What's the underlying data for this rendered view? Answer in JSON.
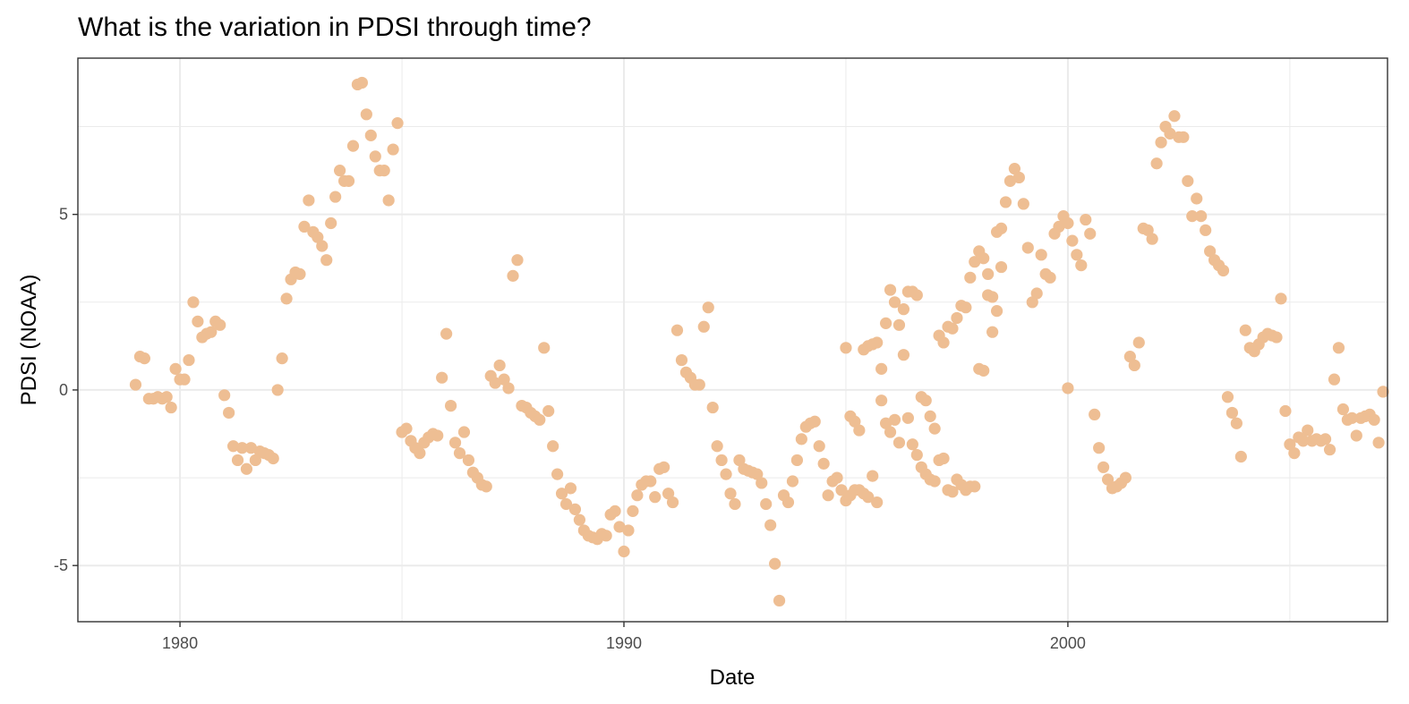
{
  "chart_data": {
    "type": "scatter",
    "title": "What is the variation in PDSI through time?",
    "xlabel": "Date",
    "ylabel": "PDSI (NOAA)",
    "x_tick_labels": [
      "1980",
      "1990",
      "2000"
    ],
    "y_tick_labels": [
      "-5",
      "0",
      "5"
    ],
    "xlim": [
      1977.7,
      2007.2
    ],
    "ylim": [
      -6.6,
      9.45
    ],
    "grid": true,
    "point_color": "#EEBE93",
    "points": [
      [
        1979.0,
        0.15
      ],
      [
        1979.1,
        0.95
      ],
      [
        1979.2,
        0.9
      ],
      [
        1979.3,
        -0.25
      ],
      [
        1979.4,
        -0.25
      ],
      [
        1979.5,
        -0.2
      ],
      [
        1979.6,
        -0.25
      ],
      [
        1979.7,
        -0.2
      ],
      [
        1979.8,
        -0.5
      ],
      [
        1979.9,
        0.6
      ],
      [
        2000.0,
        0.05
      ],
      [
        1980.0,
        0.3
      ],
      [
        1980.1,
        0.3
      ],
      [
        1980.2,
        0.85
      ],
      [
        1980.3,
        2.5
      ],
      [
        1980.4,
        1.95
      ],
      [
        1980.5,
        1.5
      ],
      [
        1980.6,
        1.6
      ],
      [
        1980.7,
        1.65
      ],
      [
        1980.8,
        1.95
      ],
      [
        1980.9,
        1.85
      ],
      [
        1981.0,
        -0.15
      ],
      [
        1981.1,
        -0.65
      ],
      [
        1981.2,
        -1.6
      ],
      [
        1981.3,
        -2.0
      ],
      [
        1981.4,
        -1.65
      ],
      [
        1981.5,
        -2.25
      ],
      [
        1981.6,
        -1.65
      ],
      [
        1981.7,
        -2.0
      ],
      [
        1981.8,
        -1.75
      ],
      [
        1981.9,
        -1.8
      ],
      [
        1982.0,
        -1.85
      ],
      [
        1982.1,
        -1.95
      ],
      [
        1982.2,
        0.0
      ],
      [
        1982.3,
        0.9
      ],
      [
        1982.4,
        2.6
      ],
      [
        1982.5,
        3.15
      ],
      [
        1982.6,
        3.35
      ],
      [
        1982.7,
        3.3
      ],
      [
        1982.8,
        4.65
      ],
      [
        1982.9,
        5.4
      ],
      [
        1983.0,
        4.5
      ],
      [
        1983.1,
        4.35
      ],
      [
        1983.2,
        4.1
      ],
      [
        1983.3,
        3.7
      ],
      [
        1983.4,
        4.75
      ],
      [
        1983.5,
        5.5
      ],
      [
        1983.6,
        6.25
      ],
      [
        1983.7,
        5.95
      ],
      [
        1983.8,
        5.95
      ],
      [
        1983.9,
        6.95
      ],
      [
        1984.0,
        8.7
      ],
      [
        1984.1,
        8.75
      ],
      [
        1984.2,
        7.85
      ],
      [
        1984.3,
        7.25
      ],
      [
        1984.4,
        6.65
      ],
      [
        1984.5,
        6.25
      ],
      [
        1984.6,
        6.25
      ],
      [
        1984.7,
        5.4
      ],
      [
        1984.8,
        6.85
      ],
      [
        1984.9,
        7.6
      ],
      [
        1985.0,
        -1.2
      ],
      [
        1985.1,
        -1.1
      ],
      [
        1985.2,
        -1.45
      ],
      [
        1985.3,
        -1.65
      ],
      [
        1985.4,
        -1.8
      ],
      [
        1985.5,
        -1.5
      ],
      [
        1985.6,
        -1.35
      ],
      [
        1985.7,
        -1.25
      ],
      [
        1985.8,
        -1.3
      ],
      [
        1985.9,
        0.35
      ],
      [
        1986.0,
        1.6
      ],
      [
        1986.1,
        -0.45
      ],
      [
        1986.2,
        -1.5
      ],
      [
        1986.3,
        -1.8
      ],
      [
        1986.4,
        -1.2
      ],
      [
        1986.5,
        -2.0
      ],
      [
        1986.6,
        -2.35
      ],
      [
        1986.7,
        -2.5
      ],
      [
        1986.8,
        -2.7
      ],
      [
        1986.9,
        -2.75
      ],
      [
        1987.0,
        0.4
      ],
      [
        1987.1,
        0.2
      ],
      [
        1987.2,
        0.7
      ],
      [
        1987.3,
        0.3
      ],
      [
        1987.4,
        0.05
      ],
      [
        1987.5,
        3.25
      ],
      [
        1987.6,
        3.7
      ],
      [
        1987.7,
        -0.45
      ],
      [
        1987.8,
        -0.5
      ],
      [
        1987.9,
        -0.65
      ],
      [
        1988.0,
        -0.75
      ],
      [
        1988.1,
        -0.85
      ],
      [
        1988.2,
        1.2
      ],
      [
        1988.3,
        -0.6
      ],
      [
        1988.4,
        -1.6
      ],
      [
        1988.5,
        -2.4
      ],
      [
        1988.6,
        -2.95
      ],
      [
        1988.7,
        -3.25
      ],
      [
        1988.8,
        -2.8
      ],
      [
        1988.9,
        -3.4
      ],
      [
        1989.0,
        -3.7
      ],
      [
        1989.1,
        -4.0
      ],
      [
        1989.2,
        -4.15
      ],
      [
        1989.3,
        -4.2
      ],
      [
        1989.4,
        -4.25
      ],
      [
        1989.5,
        -4.1
      ],
      [
        1989.6,
        -4.15
      ],
      [
        1989.7,
        -3.55
      ],
      [
        1989.8,
        -3.45
      ],
      [
        1989.9,
        -3.9
      ],
      [
        1990.0,
        -4.6
      ],
      [
        1990.1,
        -4.0
      ],
      [
        1990.2,
        -3.45
      ],
      [
        1990.3,
        -3.0
      ],
      [
        1990.4,
        -2.7
      ],
      [
        1990.5,
        -2.6
      ],
      [
        1990.6,
        -2.6
      ],
      [
        1990.7,
        -3.05
      ],
      [
        1990.8,
        -2.25
      ],
      [
        1990.9,
        -2.2
      ],
      [
        1991.0,
        -2.95
      ],
      [
        1991.1,
        -3.2
      ],
      [
        1991.2,
        1.7
      ],
      [
        1991.3,
        0.85
      ],
      [
        1991.4,
        0.5
      ],
      [
        1991.5,
        0.35
      ],
      [
        1991.6,
        0.15
      ],
      [
        1991.7,
        0.15
      ],
      [
        1991.8,
        1.8
      ],
      [
        1991.9,
        2.35
      ],
      [
        1992.0,
        -0.5
      ],
      [
        1992.1,
        -1.6
      ],
      [
        1992.2,
        -2.0
      ],
      [
        1992.3,
        -2.4
      ],
      [
        1992.4,
        -2.95
      ],
      [
        1992.5,
        -3.25
      ],
      [
        1992.6,
        -2.0
      ],
      [
        1992.7,
        -2.25
      ],
      [
        1992.8,
        -2.3
      ],
      [
        1992.9,
        -2.35
      ],
      [
        1993.0,
        -2.4
      ],
      [
        1993.1,
        -2.65
      ],
      [
        1993.2,
        -3.25
      ],
      [
        1993.3,
        -3.85
      ],
      [
        1993.4,
        -4.95
      ],
      [
        1993.5,
        -6.0
      ],
      [
        1993.6,
        -3.0
      ],
      [
        1993.7,
        -3.2
      ],
      [
        1993.8,
        -2.6
      ],
      [
        1993.9,
        -2.0
      ],
      [
        1994.0,
        -1.4
      ],
      [
        1994.1,
        -1.05
      ],
      [
        1994.2,
        -0.95
      ],
      [
        1994.3,
        -0.9
      ],
      [
        1994.4,
        -1.6
      ],
      [
        1994.5,
        -2.1
      ],
      [
        1994.6,
        -3.0
      ],
      [
        1994.7,
        -2.6
      ],
      [
        1994.8,
        -2.5
      ],
      [
        1994.9,
        -2.85
      ],
      [
        1995.0,
        -3.15
      ],
      [
        1995.1,
        -3.0
      ],
      [
        1995.2,
        -2.85
      ],
      [
        1995.3,
        -2.85
      ],
      [
        1995.4,
        -2.95
      ],
      [
        1995.5,
        -3.05
      ],
      [
        1995.6,
        -2.45
      ],
      [
        1995.7,
        -3.2
      ],
      [
        1995.8,
        0.6
      ],
      [
        1995.9,
        1.9
      ],
      [
        1996.0,
        2.85
      ],
      [
        1996.1,
        2.5
      ],
      [
        1996.2,
        1.85
      ],
      [
        1996.3,
        2.3
      ],
      [
        1996.4,
        2.8
      ],
      [
        1996.5,
        2.8
      ],
      [
        1996.6,
        2.7
      ],
      [
        1996.7,
        -0.2
      ],
      [
        1996.8,
        -0.3
      ],
      [
        1996.9,
        -0.75
      ],
      [
        1997.0,
        -1.1
      ],
      [
        1997.1,
        -2.0
      ],
      [
        1997.2,
        -1.95
      ],
      [
        1997.3,
        -2.85
      ],
      [
        1997.4,
        -2.9
      ],
      [
        1997.5,
        -2.55
      ],
      [
        1997.6,
        -2.7
      ],
      [
        1997.7,
        -2.85
      ],
      [
        1997.8,
        -2.75
      ],
      [
        1997.9,
        -2.75
      ],
      [
        1998.0,
        0.6
      ],
      [
        1998.1,
        0.55
      ],
      [
        1998.2,
        2.7
      ],
      [
        1998.3,
        1.65
      ],
      [
        1998.4,
        4.5
      ],
      [
        1998.5,
        4.6
      ],
      [
        1998.6,
        5.35
      ],
      [
        1998.7,
        5.95
      ],
      [
        1998.8,
        6.3
      ],
      [
        1998.9,
        6.05
      ],
      [
        1999.0,
        5.3
      ],
      [
        1999.1,
        4.05
      ],
      [
        1999.2,
        2.5
      ],
      [
        1999.3,
        2.75
      ],
      [
        1999.4,
        3.85
      ],
      [
        1999.5,
        3.3
      ],
      [
        1999.6,
        3.2
      ],
      [
        1999.7,
        4.45
      ],
      [
        1999.8,
        4.65
      ],
      [
        1999.9,
        4.95
      ],
      [
        2000.0,
        4.75
      ],
      [
        2000.1,
        4.25
      ],
      [
        2000.2,
        3.85
      ],
      [
        2000.3,
        3.55
      ],
      [
        2000.4,
        4.85
      ],
      [
        2000.5,
        4.45
      ],
      [
        2000.6,
        -0.7
      ],
      [
        2000.7,
        -1.65
      ],
      [
        2000.8,
        -2.2
      ],
      [
        2000.9,
        -2.55
      ],
      [
        2001.0,
        -2.8
      ],
      [
        2001.1,
        -2.75
      ],
      [
        2001.2,
        -2.65
      ],
      [
        2001.3,
        -2.5
      ],
      [
        2001.4,
        0.95
      ],
      [
        2001.5,
        0.7
      ],
      [
        2001.6,
        1.35
      ],
      [
        2001.7,
        4.6
      ],
      [
        2001.8,
        4.55
      ],
      [
        2001.9,
        4.3
      ],
      [
        2002.0,
        6.45
      ],
      [
        2002.1,
        7.05
      ],
      [
        2002.2,
        7.5
      ],
      [
        2002.3,
        7.3
      ],
      [
        2002.4,
        7.8
      ],
      [
        2002.5,
        7.2
      ],
      [
        2002.6,
        7.2
      ],
      [
        2002.7,
        5.95
      ],
      [
        2002.8,
        4.95
      ],
      [
        2002.9,
        5.45
      ],
      [
        2003.0,
        4.95
      ],
      [
        2003.1,
        4.55
      ],
      [
        2003.2,
        3.95
      ],
      [
        2003.3,
        3.7
      ],
      [
        2003.4,
        3.55
      ],
      [
        2003.5,
        3.4
      ],
      [
        2003.6,
        -0.2
      ],
      [
        2003.7,
        -0.65
      ],
      [
        2003.8,
        -0.95
      ],
      [
        2003.9,
        -1.9
      ],
      [
        2004.0,
        1.7
      ],
      [
        2004.1,
        1.2
      ],
      [
        2004.2,
        1.1
      ],
      [
        2004.3,
        1.3
      ],
      [
        2004.4,
        1.5
      ],
      [
        2004.5,
        1.6
      ],
      [
        2004.6,
        1.55
      ],
      [
        2004.7,
        1.5
      ],
      [
        2004.8,
        2.6
      ],
      [
        2004.9,
        -0.6
      ],
      [
        2005.0,
        -1.55
      ],
      [
        2005.1,
        -1.8
      ],
      [
        2005.2,
        -1.35
      ],
      [
        2005.3,
        -1.45
      ],
      [
        2005.4,
        -1.15
      ],
      [
        2005.5,
        -1.45
      ],
      [
        2005.6,
        -1.4
      ],
      [
        2005.7,
        -1.45
      ],
      [
        2005.8,
        -1.4
      ],
      [
        2005.9,
        -1.7
      ],
      [
        2006.0,
        0.3
      ],
      [
        2006.1,
        1.2
      ],
      [
        2006.2,
        -0.55
      ],
      [
        2006.3,
        -0.85
      ],
      [
        2006.4,
        -0.8
      ],
      [
        2006.5,
        -1.3
      ],
      [
        2006.6,
        -0.8
      ],
      [
        2006.7,
        -0.75
      ],
      [
        2006.8,
        -0.7
      ],
      [
        2006.9,
        -0.85
      ],
      [
        2007.0,
        -1.5
      ],
      [
        2007.1,
        -0.05
      ],
      [
        1995.0,
        1.2
      ],
      [
        1995.1,
        -0.75
      ],
      [
        1995.2,
        -0.9
      ],
      [
        1995.3,
        -1.15
      ],
      [
        1995.4,
        1.15
      ],
      [
        1995.5,
        1.25
      ],
      [
        1995.6,
        1.3
      ],
      [
        1995.7,
        1.35
      ],
      [
        1995.8,
        -0.3
      ],
      [
        1995.9,
        -0.95
      ],
      [
        1996.0,
        -1.2
      ],
      [
        1996.1,
        -0.85
      ],
      [
        1996.2,
        -1.5
      ],
      [
        1996.3,
        1.0
      ],
      [
        1996.4,
        -0.8
      ],
      [
        1996.5,
        -1.55
      ],
      [
        1996.6,
        -1.85
      ],
      [
        1996.7,
        -2.2
      ],
      [
        1996.8,
        -2.4
      ],
      [
        1996.9,
        -2.55
      ],
      [
        1997.0,
        -2.6
      ],
      [
        1997.1,
        1.55
      ],
      [
        1997.2,
        1.35
      ],
      [
        1997.3,
        1.8
      ],
      [
        1997.4,
        1.75
      ],
      [
        1997.5,
        2.05
      ],
      [
        1997.6,
        2.4
      ],
      [
        1997.7,
        2.35
      ],
      [
        1997.8,
        3.2
      ],
      [
        1997.9,
        3.65
      ],
      [
        1998.0,
        3.95
      ],
      [
        1998.1,
        3.75
      ],
      [
        1998.2,
        3.3
      ],
      [
        1998.3,
        2.65
      ],
      [
        1998.4,
        2.25
      ],
      [
        1998.5,
        3.5
      ]
    ]
  }
}
